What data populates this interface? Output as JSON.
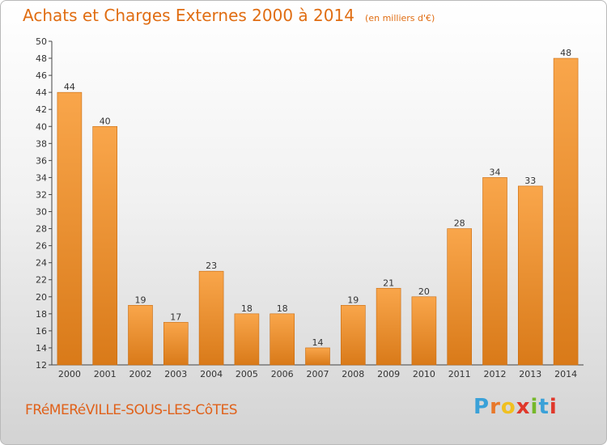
{
  "header": {
    "title": "Achats et Charges Externes 2000 à 2014",
    "subtitle": "(en milliers d'€)"
  },
  "footer": {
    "place": "FRéMERéVILLE-SOUS-LES-CôTES",
    "logo": "Proxiti"
  },
  "colors": {
    "bar_light": "#f9a64b",
    "bar_dark": "#d97a19",
    "accent": "#e06d12",
    "logo_letters": [
      "#3aa1d8",
      "#e8782a",
      "#f0c020",
      "#e0382b",
      "#76b82a",
      "#3aa1d8",
      "#e0382b"
    ]
  },
  "chart_data": {
    "type": "bar",
    "title": "Achats et Charges Externes 2000 à 2014",
    "subtitle": "(en milliers d'€)",
    "categories": [
      "2000",
      "2001",
      "2002",
      "2003",
      "2004",
      "2005",
      "2006",
      "2007",
      "2008",
      "2009",
      "2010",
      "2011",
      "2012",
      "2013",
      "2014"
    ],
    "values": [
      44,
      40,
      19,
      17,
      23,
      18,
      18,
      14,
      19,
      21,
      20,
      28,
      34,
      33,
      48
    ],
    "ylim": [
      12,
      50
    ],
    "yticks": [
      12,
      14,
      16,
      18,
      20,
      22,
      24,
      26,
      28,
      30,
      32,
      34,
      36,
      38,
      40,
      42,
      44,
      46,
      48,
      50
    ],
    "grid": false,
    "data_labels": true
  }
}
